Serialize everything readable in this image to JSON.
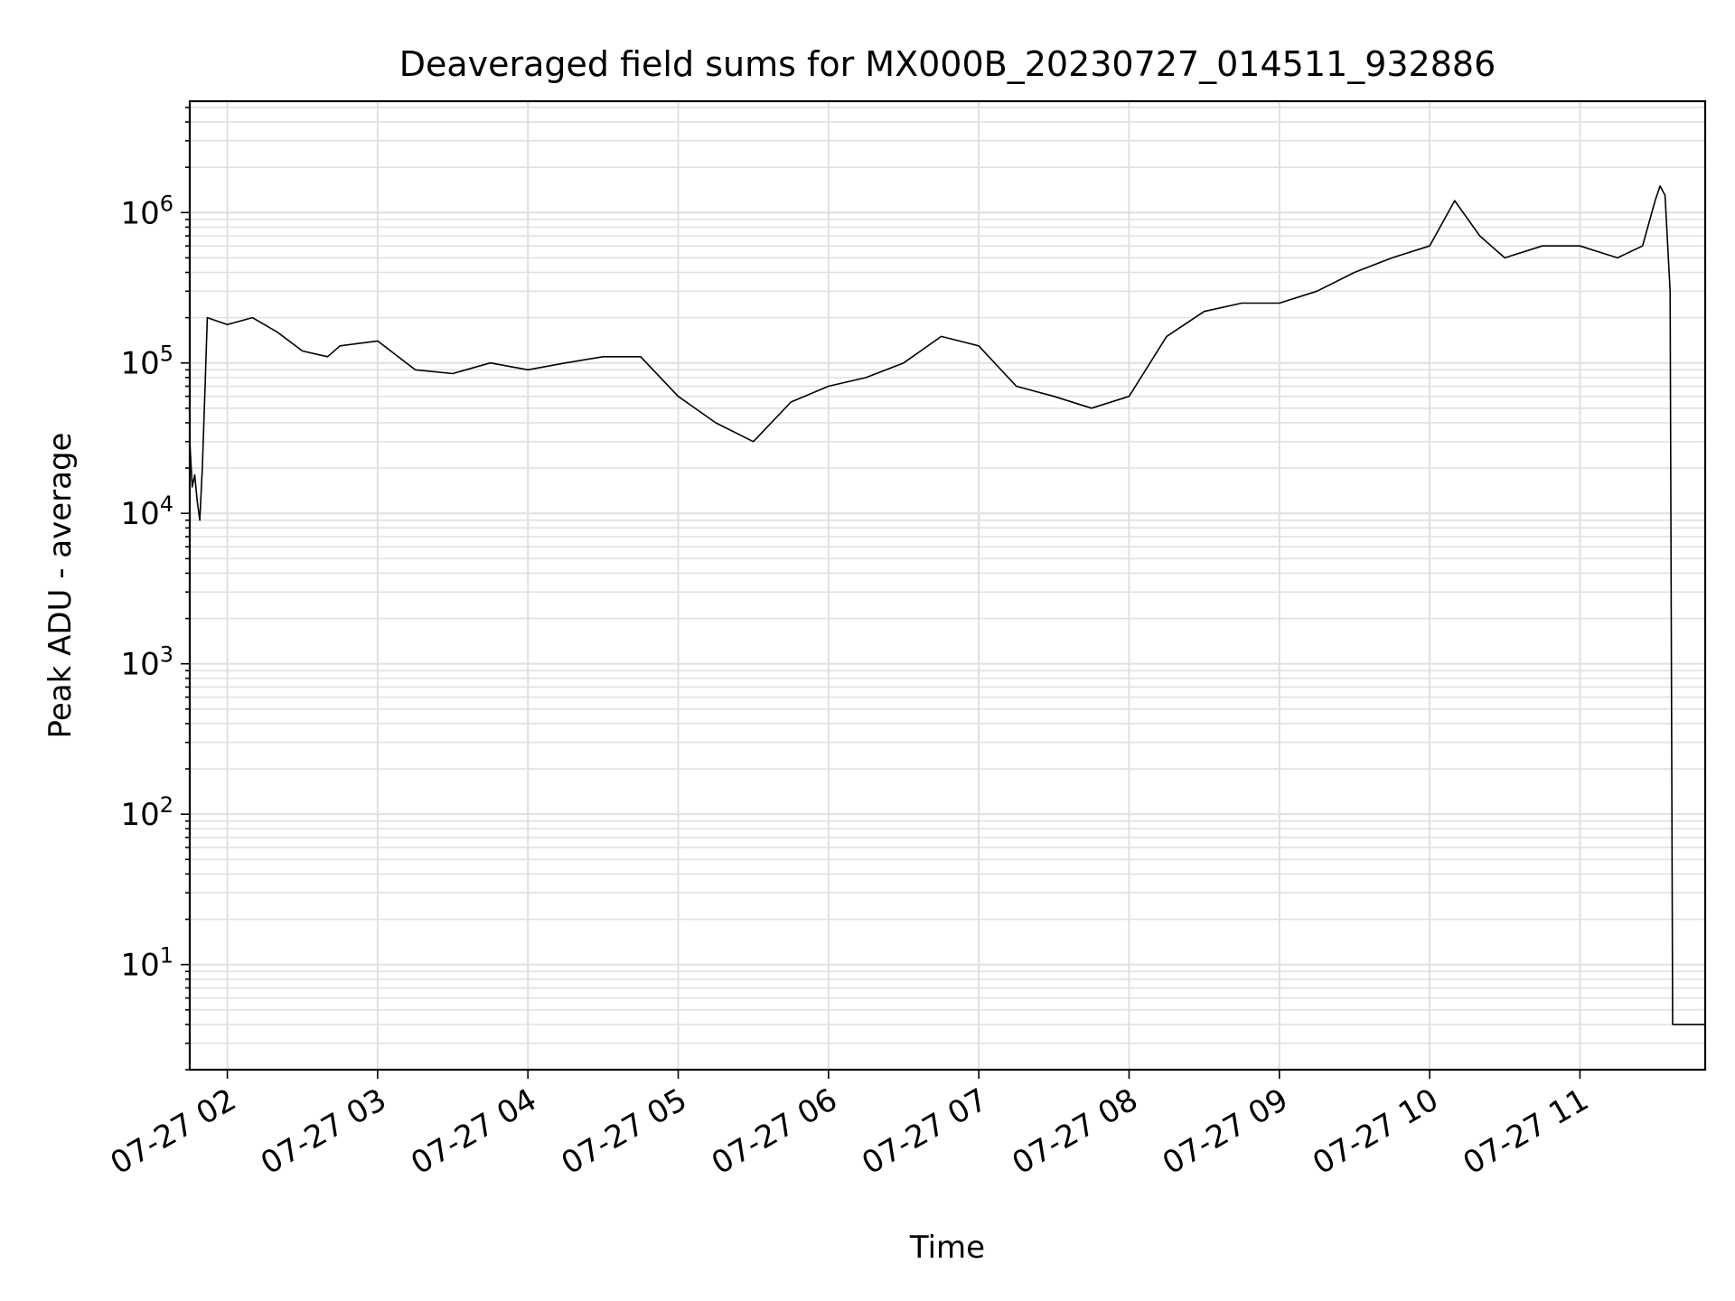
{
  "chart_data": {
    "type": "line",
    "title": "Deaveraged field sums for MX000B_20230727_014511_932886",
    "xlabel": "Time",
    "ylabel": "Peak ADU - average",
    "yscale": "log",
    "ylim": [
      2,
      5500000
    ],
    "xlim": [
      "2023-07-27T01:45:00",
      "2023-07-27T11:50:00"
    ],
    "grid": true,
    "line_color": "#000000",
    "grid_color": "#e0e0e0",
    "x_tick_labels": [
      "07-27 02",
      "07-27 03",
      "07-27 04",
      "07-27 05",
      "07-27 06",
      "07-27 07",
      "07-27 08",
      "07-27 09",
      "07-27 10",
      "07-27 11"
    ],
    "x_ticks": [
      "2023-07-27T02:00:00",
      "2023-07-27T03:00:00",
      "2023-07-27T04:00:00",
      "2023-07-27T05:00:00",
      "2023-07-27T06:00:00",
      "2023-07-27T07:00:00",
      "2023-07-27T08:00:00",
      "2023-07-27T09:00:00",
      "2023-07-27T10:00:00",
      "2023-07-27T11:00:00"
    ],
    "y_ticks": [
      {
        "value": 10,
        "base": "10",
        "exp": "1"
      },
      {
        "value": 100,
        "base": "10",
        "exp": "2"
      },
      {
        "value": 1000,
        "base": "10",
        "exp": "3"
      },
      {
        "value": 10000,
        "base": "10",
        "exp": "4"
      },
      {
        "value": 100000,
        "base": "10",
        "exp": "5"
      },
      {
        "value": 1000000,
        "base": "10",
        "exp": "6"
      }
    ],
    "series": [
      {
        "x": [
          "2023-07-27T01:45:00",
          "2023-07-27T01:46:00",
          "2023-07-27T01:47:00",
          "2023-07-27T01:48:00",
          "2023-07-27T01:49:00",
          "2023-07-27T01:50:00",
          "2023-07-27T01:51:00",
          "2023-07-27T01:52:00",
          "2023-07-27T02:00:00",
          "2023-07-27T02:10:00",
          "2023-07-27T02:20:00",
          "2023-07-27T02:30:00",
          "2023-07-27T02:40:00",
          "2023-07-27T02:45:00",
          "2023-07-27T03:00:00",
          "2023-07-27T03:15:00",
          "2023-07-27T03:30:00",
          "2023-07-27T03:45:00",
          "2023-07-27T04:00:00",
          "2023-07-27T04:15:00",
          "2023-07-27T04:30:00",
          "2023-07-27T04:45:00",
          "2023-07-27T05:00:00",
          "2023-07-27T05:15:00",
          "2023-07-27T05:30:00",
          "2023-07-27T05:45:00",
          "2023-07-27T06:00:00",
          "2023-07-27T06:15:00",
          "2023-07-27T06:30:00",
          "2023-07-27T06:45:00",
          "2023-07-27T07:00:00",
          "2023-07-27T07:15:00",
          "2023-07-27T07:30:00",
          "2023-07-27T07:45:00",
          "2023-07-27T08:00:00",
          "2023-07-27T08:15:00",
          "2023-07-27T08:30:00",
          "2023-07-27T08:45:00",
          "2023-07-27T09:00:00",
          "2023-07-27T09:15:00",
          "2023-07-27T09:30:00",
          "2023-07-27T09:45:00",
          "2023-07-27T10:00:00",
          "2023-07-27T10:10:00",
          "2023-07-27T10:20:00",
          "2023-07-27T10:30:00",
          "2023-07-27T10:45:00",
          "2023-07-27T11:00:00",
          "2023-07-27T11:15:00",
          "2023-07-27T11:25:00",
          "2023-07-27T11:30:00",
          "2023-07-27T11:32:00",
          "2023-07-27T11:34:00",
          "2023-07-27T11:36:00",
          "2023-07-27T11:37:00",
          "2023-07-27T11:40:00",
          "2023-07-27T11:45:00",
          "2023-07-27T11:50:00"
        ],
        "y": [
          30000,
          15000,
          18000,
          12000,
          9000,
          20000,
          60000,
          200000,
          180000,
          200000,
          160000,
          120000,
          110000,
          130000,
          140000,
          90000,
          85000,
          100000,
          90000,
          100000,
          110000,
          110000,
          60000,
          40000,
          30000,
          55000,
          70000,
          80000,
          100000,
          150000,
          130000,
          70000,
          60000,
          50000,
          60000,
          150000,
          220000,
          250000,
          250000,
          300000,
          400000,
          500000,
          600000,
          1200000,
          700000,
          500000,
          600000,
          600000,
          500000,
          600000,
          1200000,
          1500000,
          1300000,
          300000,
          4,
          4,
          4,
          4
        ]
      }
    ]
  }
}
